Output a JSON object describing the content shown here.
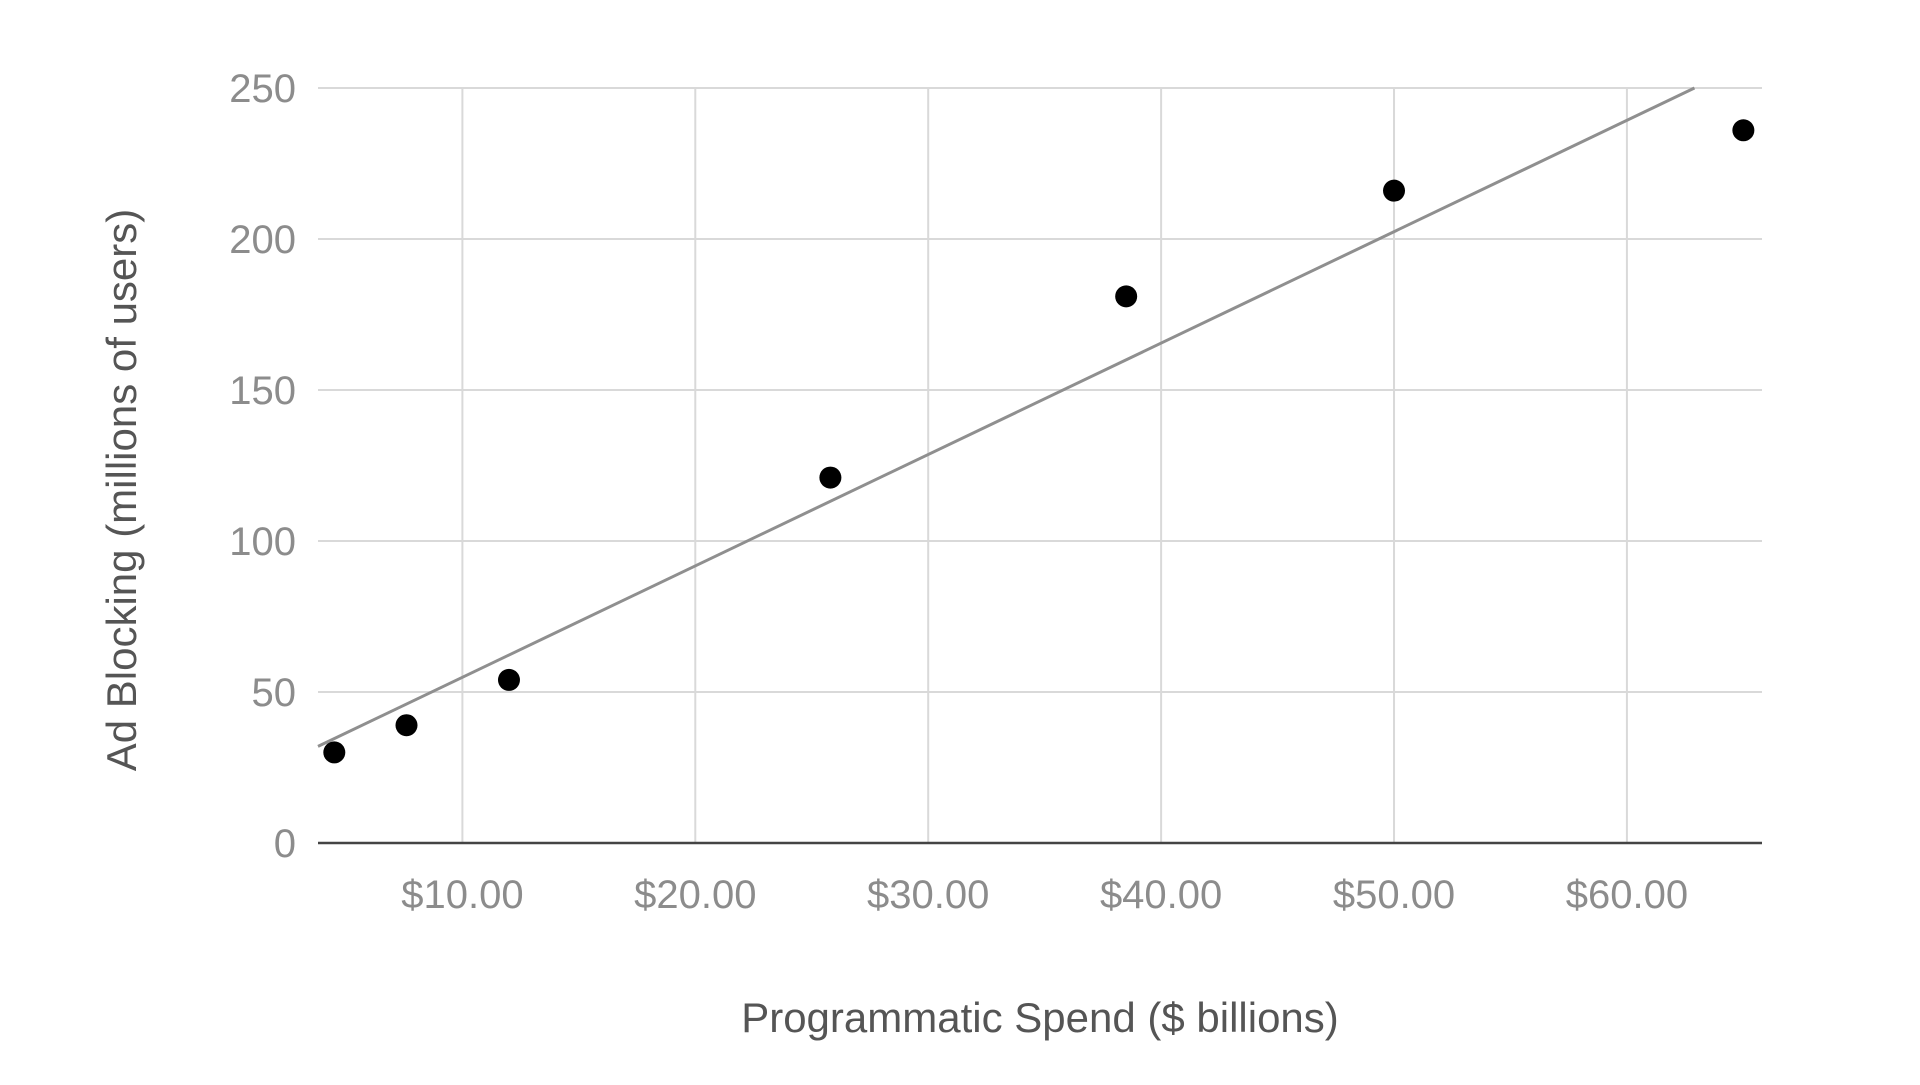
{
  "chart_data": {
    "type": "scatter",
    "xlabel": "Programmatic Spend ($ billions)",
    "ylabel": "Ad Blocking (millions of users)",
    "xlim": [
      3.8,
      65.8
    ],
    "ylim": [
      0,
      250
    ],
    "x_ticks": [
      10,
      20,
      30,
      40,
      50,
      60
    ],
    "x_tick_labels": [
      "$10.00",
      "$20.00",
      "$30.00",
      "$40.00",
      "$50.00",
      "$60.00"
    ],
    "y_ticks": [
      0,
      50,
      100,
      150,
      200,
      250
    ],
    "y_tick_labels": [
      "0",
      "50",
      "100",
      "150",
      "200",
      "250"
    ],
    "grid": true,
    "points": [
      {
        "x": 4.5,
        "y": 30
      },
      {
        "x": 7.6,
        "y": 39
      },
      {
        "x": 12.0,
        "y": 54
      },
      {
        "x": 25.8,
        "y": 121
      },
      {
        "x": 38.5,
        "y": 181
      },
      {
        "x": 50.0,
        "y": 216
      },
      {
        "x": 65.0,
        "y": 236
      }
    ],
    "trendline": {
      "type": "linear",
      "x0": 3.8,
      "y0": 32,
      "x1": 62.9,
      "y1": 250
    },
    "colors": {
      "point": "#000000",
      "trendline": "#8f8f8f",
      "grid": "#d9d9d9"
    }
  }
}
